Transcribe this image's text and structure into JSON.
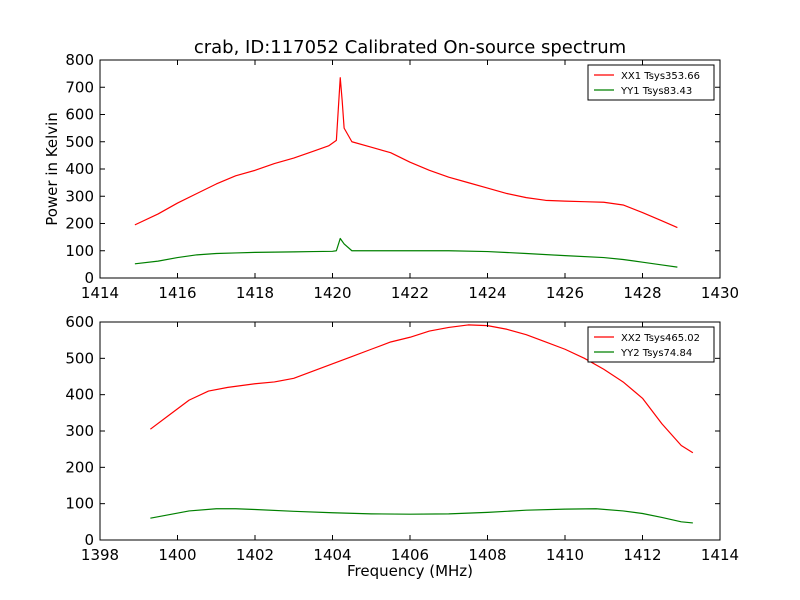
{
  "title": "crab, ID:117052 Calibrated On-source spectrum",
  "chart_data": [
    {
      "type": "line",
      "ylabel": "Power in Kelvin",
      "xlabel": "",
      "xlim": [
        1414,
        1430
      ],
      "ylim": [
        0,
        800
      ],
      "xticks": [
        1414,
        1416,
        1418,
        1420,
        1422,
        1424,
        1426,
        1428,
        1430
      ],
      "yticks": [
        0,
        100,
        200,
        300,
        400,
        500,
        600,
        700,
        800
      ],
      "legend": "top-right",
      "series": [
        {
          "name": "XX1 Tsys353.66",
          "color": "#ff0000",
          "points": [
            [
              1414.9,
              195
            ],
            [
              1415.5,
              235
            ],
            [
              1416,
              275
            ],
            [
              1416.5,
              310
            ],
            [
              1417,
              345
            ],
            [
              1417.5,
              375
            ],
            [
              1418,
              395
            ],
            [
              1418.5,
              420
            ],
            [
              1419,
              440
            ],
            [
              1419.5,
              465
            ],
            [
              1419.9,
              485
            ],
            [
              1420.1,
              505
            ],
            [
              1420.2,
              735
            ],
            [
              1420.25,
              650
            ],
            [
              1420.3,
              550
            ],
            [
              1420.5,
              500
            ],
            [
              1421,
              480
            ],
            [
              1421.5,
              460
            ],
            [
              1422,
              425
            ],
            [
              1422.5,
              395
            ],
            [
              1423,
              370
            ],
            [
              1423.5,
              350
            ],
            [
              1424,
              330
            ],
            [
              1424.5,
              310
            ],
            [
              1425,
              295
            ],
            [
              1425.5,
              285
            ],
            [
              1426,
              282
            ],
            [
              1426.5,
              280
            ],
            [
              1427,
              278
            ],
            [
              1427.5,
              268
            ],
            [
              1428,
              240
            ],
            [
              1428.5,
              210
            ],
            [
              1428.9,
              185
            ]
          ]
        },
        {
          "name": "YY1 Tsys83.43",
          "color": "#008000",
          "points": [
            [
              1414.9,
              52
            ],
            [
              1415.5,
              62
            ],
            [
              1416,
              75
            ],
            [
              1416.5,
              85
            ],
            [
              1417,
              90
            ],
            [
              1417.5,
              92
            ],
            [
              1418,
              94
            ],
            [
              1418.5,
              95
            ],
            [
              1419,
              96
            ],
            [
              1419.5,
              97
            ],
            [
              1420,
              98
            ],
            [
              1420.1,
              100
            ],
            [
              1420.2,
              145
            ],
            [
              1420.3,
              125
            ],
            [
              1420.5,
              100
            ],
            [
              1421,
              100
            ],
            [
              1422,
              100
            ],
            [
              1423,
              100
            ],
            [
              1424,
              97
            ],
            [
              1425,
              90
            ],
            [
              1426,
              82
            ],
            [
              1427,
              75
            ],
            [
              1427.5,
              68
            ],
            [
              1428,
              58
            ],
            [
              1428.5,
              48
            ],
            [
              1428.9,
              40
            ]
          ]
        }
      ]
    },
    {
      "type": "line",
      "ylabel": "",
      "xlabel": "Frequency (MHz)",
      "xlim": [
        1398,
        1414
      ],
      "ylim": [
        0,
        600
      ],
      "xticks": [
        1398,
        1400,
        1402,
        1404,
        1406,
        1408,
        1410,
        1412,
        1414
      ],
      "yticks": [
        0,
        100,
        200,
        300,
        400,
        500,
        600
      ],
      "legend": "top-right",
      "series": [
        {
          "name": "XX2 Tsys465.02",
          "color": "#ff0000",
          "points": [
            [
              1399.3,
              305
            ],
            [
              1399.8,
              345
            ],
            [
              1400.3,
              385
            ],
            [
              1400.8,
              410
            ],
            [
              1401.3,
              420
            ],
            [
              1402,
              430
            ],
            [
              1402.5,
              435
            ],
            [
              1403,
              445
            ],
            [
              1403.5,
              465
            ],
            [
              1404,
              485
            ],
            [
              1404.5,
              505
            ],
            [
              1405,
              525
            ],
            [
              1405.5,
              545
            ],
            [
              1406,
              558
            ],
            [
              1406.5,
              575
            ],
            [
              1407,
              585
            ],
            [
              1407.5,
              592
            ],
            [
              1408,
              590
            ],
            [
              1408.5,
              580
            ],
            [
              1409,
              565
            ],
            [
              1409.5,
              545
            ],
            [
              1410,
              525
            ],
            [
              1410.5,
              500
            ],
            [
              1411,
              470
            ],
            [
              1411.5,
              435
            ],
            [
              1412,
              390
            ],
            [
              1412.5,
              320
            ],
            [
              1413,
              260
            ],
            [
              1413.3,
              240
            ]
          ]
        },
        {
          "name": "YY2 Tsys74.84",
          "color": "#008000",
          "points": [
            [
              1399.3,
              60
            ],
            [
              1399.8,
              70
            ],
            [
              1400.3,
              80
            ],
            [
              1401,
              86
            ],
            [
              1401.5,
              86
            ],
            [
              1402,
              84
            ],
            [
              1403,
              79
            ],
            [
              1404,
              75
            ],
            [
              1405,
              72
            ],
            [
              1406,
              71
            ],
            [
              1407,
              72
            ],
            [
              1408,
              76
            ],
            [
              1409,
              82
            ],
            [
              1410,
              85
            ],
            [
              1410.8,
              86
            ],
            [
              1411.5,
              80
            ],
            [
              1412,
              73
            ],
            [
              1412.5,
              62
            ],
            [
              1413,
              50
            ],
            [
              1413.3,
              47
            ]
          ]
        }
      ]
    }
  ]
}
